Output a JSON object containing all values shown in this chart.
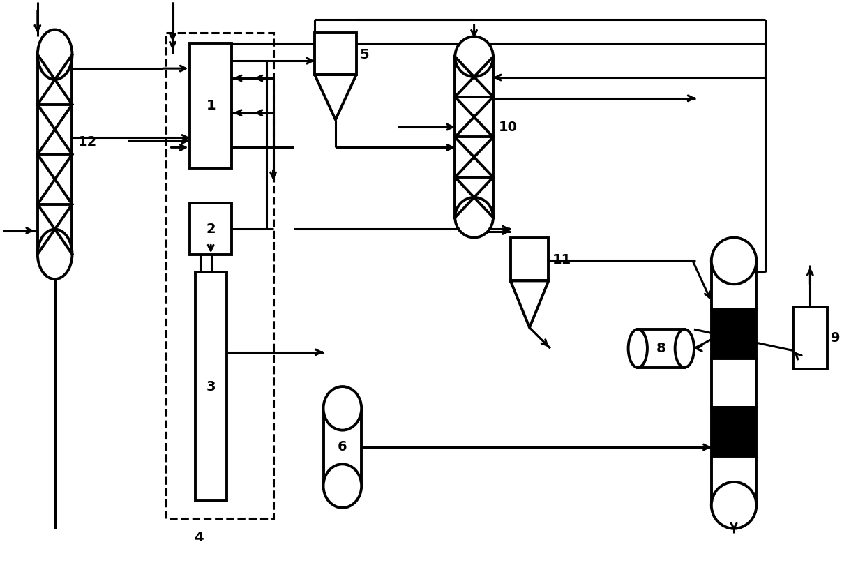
{
  "bg_color": "#ffffff",
  "lw": 2.2
}
